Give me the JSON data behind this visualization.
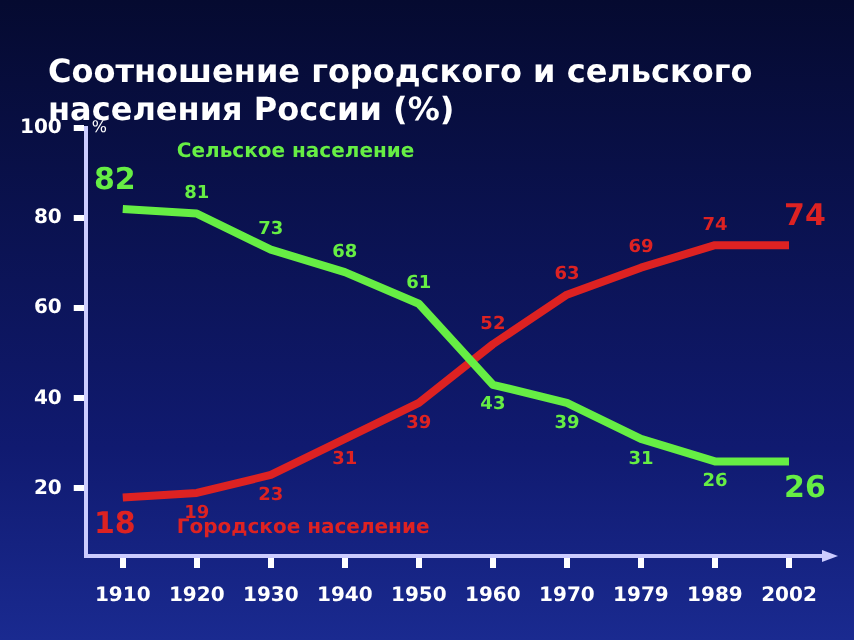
{
  "chart_data": {
    "type": "line",
    "title": "Соотношение городского и сельского населения России (%)",
    "ylabel": "%",
    "categories": [
      "1910",
      "1920",
      "1930",
      "1940",
      "1950",
      "1960",
      "1970",
      "1979",
      "1989",
      "2002"
    ],
    "series": [
      {
        "name": "Сельское население",
        "color": "#66ee44",
        "values": [
          82,
          81,
          73,
          68,
          61,
          43,
          39,
          31,
          26,
          26
        ]
      },
      {
        "name": "Городское население",
        "color": "#dd2222",
        "values": [
          18,
          19,
          23,
          31,
          39,
          52,
          63,
          69,
          74,
          74
        ]
      }
    ],
    "ylim": [
      5,
      100
    ],
    "yticks": [
      20,
      40,
      60,
      80,
      100
    ],
    "grid": false,
    "legend": false,
    "data_labels": true,
    "marker": "none",
    "line_style": "solid"
  }
}
